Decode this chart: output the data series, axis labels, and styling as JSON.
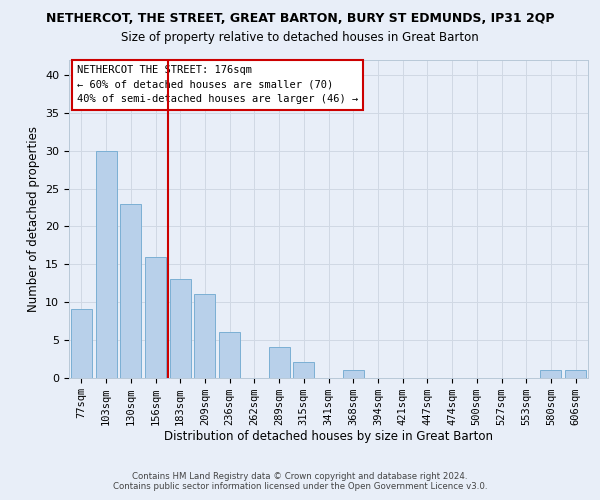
{
  "title": "NETHERCOT, THE STREET, GREAT BARTON, BURY ST EDMUNDS, IP31 2QP",
  "subtitle": "Size of property relative to detached houses in Great Barton",
  "xlabel": "Distribution of detached houses by size in Great Barton",
  "ylabel": "Number of detached properties",
  "categories": [
    "77sqm",
    "103sqm",
    "130sqm",
    "156sqm",
    "183sqm",
    "209sqm",
    "236sqm",
    "262sqm",
    "289sqm",
    "315sqm",
    "341sqm",
    "368sqm",
    "394sqm",
    "421sqm",
    "447sqm",
    "474sqm",
    "500sqm",
    "527sqm",
    "553sqm",
    "580sqm",
    "606sqm"
  ],
  "values": [
    9,
    30,
    23,
    16,
    13,
    11,
    6,
    0,
    4,
    2,
    0,
    1,
    0,
    0,
    0,
    0,
    0,
    0,
    0,
    1,
    1
  ],
  "bar_color": "#b8d0ea",
  "bar_edge_color": "#7bafd4",
  "vline_x": 3.5,
  "vline_color": "#cc0000",
  "annotation_text": "NETHERCOT THE STREET: 176sqm\n← 60% of detached houses are smaller (70)\n40% of semi-detached houses are larger (46) →",
  "annotation_box_color": "#ffffff",
  "annotation_box_edge": "#cc0000",
  "ylim": [
    0,
    42
  ],
  "yticks": [
    0,
    5,
    10,
    15,
    20,
    25,
    30,
    35,
    40
  ],
  "grid_color": "#d0d8e4",
  "bg_color": "#e8eef8",
  "footer1": "Contains HM Land Registry data © Crown copyright and database right 2024.",
  "footer2": "Contains public sector information licensed under the Open Government Licence v3.0."
}
